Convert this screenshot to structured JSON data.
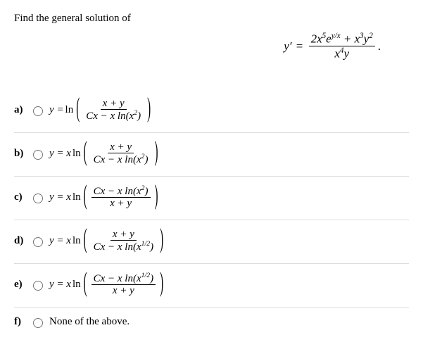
{
  "prompt": "Find the general solution of",
  "main_equation": {
    "lhs": "y′",
    "numerator_html": "2<i>x</i><sup>5</sup><i>e</i><sup><i>y</i>/<i>x</i></sup> + <i>x</i><sup>3</sup><i>y</i><sup>2</sup>",
    "denominator_html": "<i>x</i><sup>4</sup><i>y</i>"
  },
  "options": [
    {
      "letter": "a)",
      "lead": "y = ",
      "pre": "ln",
      "num": "x + y",
      "den": "Cx − x ln(x²)"
    },
    {
      "letter": "b)",
      "lead": "y = x",
      "pre": "ln",
      "num": "x + y",
      "den": "Cx − x ln(x²)"
    },
    {
      "letter": "c)",
      "lead": "y = x",
      "pre": "ln",
      "num": "Cx − x ln(x²)",
      "den": "x + y"
    },
    {
      "letter": "d)",
      "lead": "y = x",
      "pre": "ln",
      "num": "x + y",
      "den": "Cx − x ln(x¹ᐟ²)"
    },
    {
      "letter": "e)",
      "lead": "y = x",
      "pre": "ln",
      "num": "Cx − x ln(x¹ᐟ²)",
      "den": "x + y"
    }
  ],
  "none_option": {
    "letter": "f)",
    "text": "None of the above."
  },
  "style": {
    "body_font_size": 15,
    "eq_font_size": 17,
    "border_color": "#dddddd",
    "text_color": "#000000",
    "background": "#ffffff",
    "paren_scale": 2.6
  }
}
